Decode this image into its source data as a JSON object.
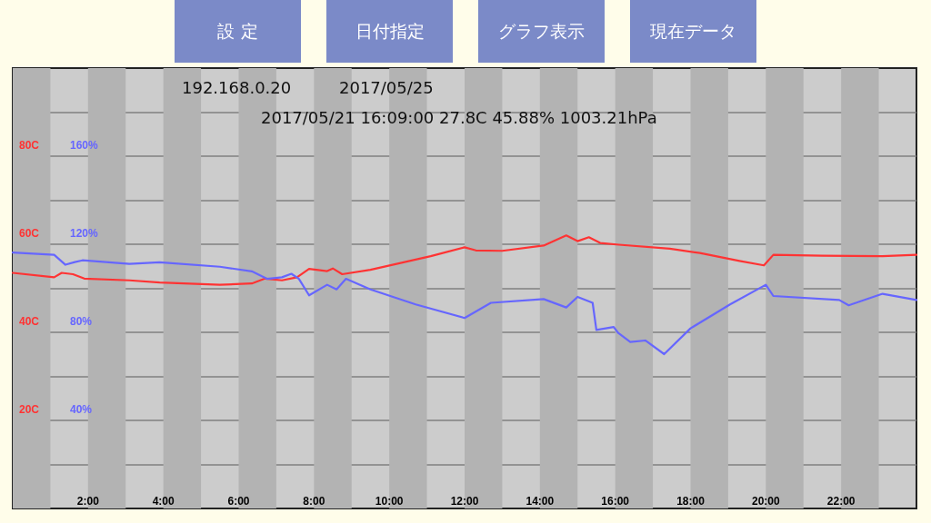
{
  "chart_data": {
    "type": "line",
    "annotations": [
      "設 定",
      "日付指定",
      "グラフ表示",
      "現在データ",
      "192.168.0.20",
      "2017/05/25",
      "2017/05/21 16:09:00 27.8C 45.88% 1003.21hPa"
    ],
    "xlim": [
      0,
      24
    ],
    "xticks": [
      {
        "value": 2,
        "label": "2:00"
      },
      {
        "value": 4,
        "label": "4:00"
      },
      {
        "value": 6,
        "label": "6:00"
      },
      {
        "value": 8,
        "label": "8:00"
      },
      {
        "value": 10,
        "label": "10:00"
      },
      {
        "value": 12,
        "label": "12:00"
      },
      {
        "value": 14,
        "label": "14:00"
      },
      {
        "value": 16,
        "label": "16:00"
      },
      {
        "value": 18,
        "label": "18:00"
      },
      {
        "value": 20,
        "label": "20:00"
      },
      {
        "value": 22,
        "label": "22:00"
      }
    ],
    "ylim": [
      0,
      100
    ],
    "yticks": [
      {
        "value": 10,
        "label": null
      },
      {
        "value": 20,
        "label": "20C"
      },
      {
        "value": 30,
        "label": null
      },
      {
        "value": 40,
        "label": "40C"
      },
      {
        "value": 50,
        "label": null
      },
      {
        "value": 60,
        "label": "60C"
      },
      {
        "value": 70,
        "label": null
      },
      {
        "value": 80,
        "label": "80C"
      },
      {
        "value": 90,
        "label": null
      }
    ],
    "y2lim": [
      0,
      200
    ],
    "y2ticks": [
      {
        "value": 40,
        "label": "40%"
      },
      {
        "value": 80,
        "label": "80%"
      },
      {
        "value": 120,
        "label": "120%"
      },
      {
        "value": 160,
        "label": "160%"
      }
    ],
    "grid": "y",
    "line_style": "solid",
    "bands": [
      {
        "axis": "x",
        "from": 0,
        "to": 1,
        "color": "#b3b3b3"
      },
      {
        "axis": "x",
        "from": 2,
        "to": 3,
        "color": "#b3b3b3"
      },
      {
        "axis": "x",
        "from": 4,
        "to": 5,
        "color": "#b3b3b3"
      },
      {
        "axis": "x",
        "from": 6,
        "to": 7,
        "color": "#b3b3b3"
      },
      {
        "axis": "x",
        "from": 8,
        "to": 9,
        "color": "#b3b3b3"
      },
      {
        "axis": "x",
        "from": 10,
        "to": 11,
        "color": "#b3b3b3"
      },
      {
        "axis": "x",
        "from": 12,
        "to": 13,
        "color": "#b3b3b3"
      },
      {
        "axis": "x",
        "from": 14,
        "to": 15,
        "color": "#b3b3b3"
      },
      {
        "axis": "x",
        "from": 16,
        "to": 17,
        "color": "#b3b3b3"
      },
      {
        "axis": "x",
        "from": 18,
        "to": 19,
        "color": "#b3b3b3"
      },
      {
        "axis": "x",
        "from": 20,
        "to": 21,
        "color": "#b3b3b3"
      },
      {
        "axis": "x",
        "from": 22,
        "to": 23,
        "color": "#b3b3b3"
      }
    ],
    "series": [
      {
        "color": "#ff3333",
        "x": [
          0,
          1.1,
          1.3,
          1.6,
          1.9,
          3.1,
          3.9,
          5.5,
          6.35,
          6.7,
          7.15,
          7.55,
          7.87,
          8.35,
          8.5,
          8.75,
          9.5,
          11.1,
          12.0,
          12.3,
          13.0,
          14.1,
          14.7,
          15.0,
          15.3,
          15.6,
          16.1,
          17.45,
          18.25,
          19.3,
          19.95,
          20.2,
          21.5,
          23.1,
          24
        ],
        "values": [
          53.5,
          52.5,
          53.5,
          53.2,
          52.2,
          51.8,
          51.3,
          50.8,
          51.1,
          52.2,
          51.8,
          52.5,
          54.4,
          53.9,
          54.5,
          53.2,
          54.2,
          57.3,
          59.3,
          58.6,
          58.5,
          59.7,
          62.0,
          60.7,
          61.6,
          60.3,
          59.9,
          59.0,
          58.0,
          56.2,
          55.2,
          57.6,
          57.4,
          57.3,
          57.6
        ]
      },
      {
        "color": "#6666ff",
        "axis": "y2",
        "x": [
          0,
          1.1,
          1.4,
          1.65,
          1.85,
          3.1,
          3.9,
          5.5,
          6.35,
          6.75,
          7.15,
          7.4,
          7.6,
          7.87,
          8.35,
          8.6,
          8.85,
          9.5,
          10.7,
          12.0,
          12.7,
          14.1,
          14.7,
          15.0,
          15.4,
          15.5,
          15.96,
          16.08,
          16.4,
          16.8,
          17.3,
          18.0,
          19.05,
          20.0,
          20.2,
          21.95,
          22.2,
          23.1,
          24
        ],
        "values": [
          116.2,
          115.2,
          110.7,
          111.9,
          112.7,
          111.1,
          111.8,
          109.8,
          107.7,
          104.3,
          105,
          106.6,
          104.3,
          96.8,
          101.6,
          99.5,
          104.3,
          99.5,
          92.7,
          86.5,
          93.4,
          95.1,
          91.3,
          96.1,
          93.4,
          81.1,
          82.4,
          79.7,
          75.6,
          76.3,
          70.1,
          81.8,
          92.7,
          101.6,
          96.5,
          94.7,
          92.3,
          97.5,
          94.7
        ]
      }
    ]
  }
}
